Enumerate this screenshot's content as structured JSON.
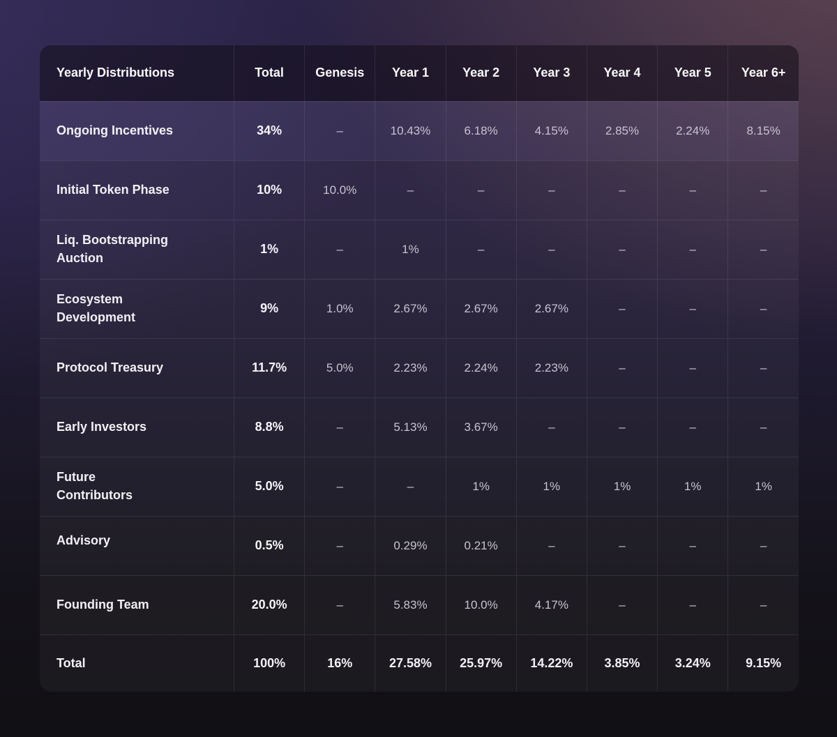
{
  "chart_data": {
    "type": "table",
    "title": "Yearly Distributions",
    "columns": [
      "Yearly Distributions",
      "Total",
      "Genesis",
      "Year 1",
      "Year 2",
      "Year 3",
      "Year 4",
      "Year 5",
      "Year 6+"
    ],
    "rows": [
      {
        "label": "Ongoing Incentives",
        "highlighted": true,
        "cells": [
          "34%",
          "–",
          "10.43%",
          "6.18%",
          "4.15%",
          "2.85%",
          "2.24%",
          "8.15%"
        ]
      },
      {
        "label": "Initial Token Phase",
        "highlighted": false,
        "cells": [
          "10%",
          "10.0%",
          "–",
          "–",
          "–",
          "–",
          "–",
          "–"
        ]
      },
      {
        "label": "Liq. Bootstrapping\nAuction",
        "highlighted": false,
        "cells": [
          "1%",
          "–",
          "1%",
          "–",
          "–",
          "–",
          "–",
          "–"
        ]
      },
      {
        "label": "Ecosystem\nDevelopment",
        "highlighted": false,
        "cells": [
          "9%",
          "1.0%",
          "2.67%",
          "2.67%",
          "2.67%",
          "–",
          "–",
          "–"
        ]
      },
      {
        "label": "Protocol Treasury",
        "highlighted": false,
        "cells": [
          "11.7%",
          "5.0%",
          "2.23%",
          "2.24%",
          "2.23%",
          "–",
          "–",
          "–"
        ]
      },
      {
        "label": "Early Investors",
        "highlighted": false,
        "cells": [
          "8.8%",
          "–",
          "5.13%",
          "3.67%",
          "–",
          "–",
          "–",
          "–"
        ]
      },
      {
        "label": "Future\nContributors",
        "highlighted": false,
        "cells": [
          "5.0%",
          "–",
          "–",
          "1%",
          "1%",
          "1%",
          "1%",
          "1%"
        ]
      },
      {
        "label": "Advisory",
        "highlighted": false,
        "cells": [
          "0.5%",
          "–",
          "0.29%",
          "0.21%",
          "–",
          "–",
          "–",
          "–"
        ]
      },
      {
        "label": "Founding Team",
        "highlighted": false,
        "cells": [
          "20.0%",
          "–",
          "5.83%",
          "10.0%",
          "4.17%",
          "–",
          "–",
          "–"
        ]
      }
    ],
    "footer": {
      "label": "Total",
      "cells": [
        "100%",
        "16%",
        "27.58%",
        "25.97%",
        "14.22%",
        "3.85%",
        "3.24%",
        "9.15%"
      ]
    },
    "layout_hints": {
      "grid": "on",
      "header_position": "top",
      "label_column": "left"
    }
  },
  "colors": {
    "page_top_left": "#272143",
    "page_top_right": "#5a484c",
    "page_bottom": "#111014",
    "header_bg": "#241d2f",
    "row_highlight": "#433c63",
    "header_text": "#faf9fb",
    "label_text": "#f2f0f4",
    "value_text": "#c9c3d1"
  }
}
